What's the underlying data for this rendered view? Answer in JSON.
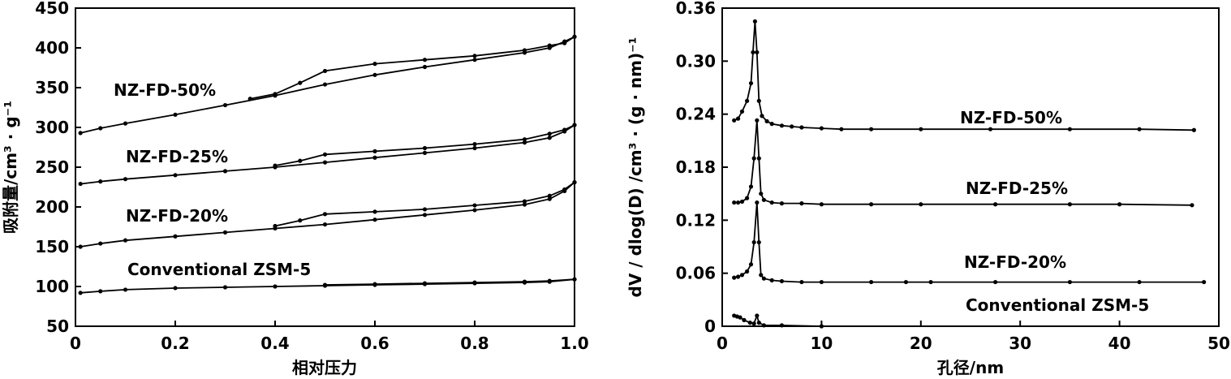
{
  "chart_data": [
    {
      "type": "line",
      "ylabel": "吸附量/cm³ · g⁻¹",
      "xlabel": "相对压力",
      "xlim": [
        0,
        1.0
      ],
      "ylim": [
        50,
        450
      ],
      "x_ticks": [
        "0",
        "0.2",
        "0.4",
        "0.6",
        "0.8",
        "1.0"
      ],
      "y_ticks": [
        "50",
        "100",
        "150",
        "200",
        "250",
        "300",
        "350",
        "400",
        "450"
      ],
      "series": [
        {
          "name": "NZ-FD-50%",
          "adsorption": [
            [
              0.01,
              293
            ],
            [
              0.05,
              299
            ],
            [
              0.1,
              305
            ],
            [
              0.2,
              316
            ],
            [
              0.3,
              328
            ],
            [
              0.4,
              340
            ],
            [
              0.5,
              354
            ],
            [
              0.6,
              366
            ],
            [
              0.7,
              376
            ],
            [
              0.8,
              385
            ],
            [
              0.9,
              394
            ],
            [
              0.95,
              400
            ],
            [
              0.98,
              408
            ],
            [
              1.0,
              414
            ]
          ],
          "desorption": [
            [
              1.0,
              414
            ],
            [
              0.98,
              406
            ],
            [
              0.95,
              403
            ],
            [
              0.9,
              397
            ],
            [
              0.8,
              390
            ],
            [
              0.7,
              385
            ],
            [
              0.6,
              380
            ],
            [
              0.5,
              371
            ],
            [
              0.45,
              356
            ],
            [
              0.4,
              342
            ],
            [
              0.35,
              336
            ]
          ]
        },
        {
          "name": "NZ-FD-25%",
          "adsorption": [
            [
              0.01,
              229
            ],
            [
              0.05,
              232
            ],
            [
              0.1,
              235
            ],
            [
              0.2,
              240
            ],
            [
              0.3,
              245
            ],
            [
              0.4,
              250
            ],
            [
              0.5,
              256
            ],
            [
              0.6,
              262
            ],
            [
              0.7,
              268
            ],
            [
              0.8,
              274
            ],
            [
              0.9,
              281
            ],
            [
              0.95,
              287
            ],
            [
              0.98,
              295
            ],
            [
              1.0,
              303
            ]
          ],
          "desorption": [
            [
              1.0,
              303
            ],
            [
              0.98,
              297
            ],
            [
              0.95,
              292
            ],
            [
              0.9,
              285
            ],
            [
              0.8,
              279
            ],
            [
              0.7,
              274
            ],
            [
              0.6,
              270
            ],
            [
              0.5,
              266
            ],
            [
              0.45,
              258
            ],
            [
              0.4,
              252
            ]
          ]
        },
        {
          "name": "NZ-FD-20%",
          "adsorption": [
            [
              0.01,
              150
            ],
            [
              0.05,
              154
            ],
            [
              0.1,
              158
            ],
            [
              0.2,
              163
            ],
            [
              0.3,
              168
            ],
            [
              0.4,
              173
            ],
            [
              0.5,
              178
            ],
            [
              0.6,
              184
            ],
            [
              0.7,
              190
            ],
            [
              0.8,
              196
            ],
            [
              0.9,
              203
            ],
            [
              0.95,
              210
            ],
            [
              0.98,
              220
            ],
            [
              1.0,
              231
            ]
          ],
          "desorption": [
            [
              1.0,
              231
            ],
            [
              0.98,
              222
            ],
            [
              0.95,
              214
            ],
            [
              0.9,
              207
            ],
            [
              0.8,
              202
            ],
            [
              0.7,
              197
            ],
            [
              0.6,
              194
            ],
            [
              0.5,
              191
            ],
            [
              0.45,
              183
            ],
            [
              0.4,
              176
            ]
          ]
        },
        {
          "name": "Conventional ZSM-5",
          "adsorption": [
            [
              0.01,
              92
            ],
            [
              0.05,
              94
            ],
            [
              0.1,
              96
            ],
            [
              0.2,
              98
            ],
            [
              0.3,
              99
            ],
            [
              0.4,
              100
            ],
            [
              0.5,
              101
            ],
            [
              0.6,
              102
            ],
            [
              0.7,
              103
            ],
            [
              0.8,
              104
            ],
            [
              0.9,
              105
            ],
            [
              0.95,
              106
            ],
            [
              1.0,
              109
            ]
          ],
          "desorption": [
            [
              1.0,
              109
            ],
            [
              0.95,
              107
            ],
            [
              0.9,
              106
            ],
            [
              0.8,
              105
            ],
            [
              0.7,
              104
            ],
            [
              0.6,
              103
            ],
            [
              0.5,
              102
            ]
          ]
        }
      ]
    },
    {
      "type": "line",
      "ylabel": "dV / dlog(D) /cm³ · (g · nm)⁻¹",
      "xlabel": "孔径/nm",
      "xlim": [
        0,
        50
      ],
      "ylim": [
        0,
        0.36
      ],
      "x_ticks": [
        "0",
        "10",
        "20",
        "30",
        "40",
        "50"
      ],
      "y_ticks": [
        "0",
        "0.06",
        "0.12",
        "0.18",
        "0.24",
        "0.30",
        "0.36"
      ],
      "series": [
        {
          "name": "NZ-FD-50%",
          "points": [
            [
              1.2,
              0.233
            ],
            [
              1.6,
              0.235
            ],
            [
              2.0,
              0.243
            ],
            [
              2.5,
              0.255
            ],
            [
              2.9,
              0.275
            ],
            [
              3.1,
              0.31
            ],
            [
              3.3,
              0.345
            ],
            [
              3.5,
              0.31
            ],
            [
              3.7,
              0.255
            ],
            [
              4.0,
              0.238
            ],
            [
              4.5,
              0.232
            ],
            [
              5,
              0.229
            ],
            [
              6,
              0.227
            ],
            [
              7,
              0.226
            ],
            [
              8,
              0.225
            ],
            [
              10,
              0.224
            ],
            [
              12,
              0.223
            ],
            [
              15,
              0.223
            ],
            [
              20,
              0.223
            ],
            [
              27,
              0.223
            ],
            [
              35,
              0.223
            ],
            [
              42,
              0.223
            ],
            [
              47.5,
              0.222
            ]
          ]
        },
        {
          "name": "NZ-FD-25%",
          "points": [
            [
              1.2,
              0.14
            ],
            [
              1.6,
              0.14
            ],
            [
              2.0,
              0.141
            ],
            [
              2.5,
              0.145
            ],
            [
              2.9,
              0.158
            ],
            [
              3.2,
              0.19
            ],
            [
              3.5,
              0.233
            ],
            [
              3.7,
              0.19
            ],
            [
              3.9,
              0.15
            ],
            [
              4.2,
              0.143
            ],
            [
              5,
              0.14
            ],
            [
              6,
              0.139
            ],
            [
              8,
              0.139
            ],
            [
              10,
              0.138
            ],
            [
              15,
              0.138
            ],
            [
              20,
              0.138
            ],
            [
              27.5,
              0.138
            ],
            [
              35,
              0.138
            ],
            [
              40,
              0.138
            ],
            [
              47.3,
              0.137
            ]
          ]
        },
        {
          "name": "NZ-FD-20%",
          "points": [
            [
              1.2,
              0.055
            ],
            [
              1.6,
              0.056
            ],
            [
              2.0,
              0.058
            ],
            [
              2.5,
              0.062
            ],
            [
              2.9,
              0.07
            ],
            [
              3.2,
              0.095
            ],
            [
              3.5,
              0.14
            ],
            [
              3.7,
              0.095
            ],
            [
              3.9,
              0.058
            ],
            [
              4.2,
              0.054
            ],
            [
              5,
              0.052
            ],
            [
              6,
              0.051
            ],
            [
              8,
              0.05
            ],
            [
              10,
              0.05
            ],
            [
              15,
              0.05
            ],
            [
              18.5,
              0.05
            ],
            [
              21,
              0.05
            ],
            [
              27.5,
              0.05
            ],
            [
              35,
              0.05
            ],
            [
              42,
              0.05
            ],
            [
              48.5,
              0.05
            ]
          ]
        },
        {
          "name": "Conventional ZSM-5",
          "points": [
            [
              1.2,
              0.012
            ],
            [
              1.5,
              0.011
            ],
            [
              1.8,
              0.01
            ],
            [
              2.2,
              0.007
            ],
            [
              2.8,
              0.004
            ],
            [
              3.2,
              0.003
            ],
            [
              3.5,
              0.012
            ],
            [
              3.7,
              0.004
            ],
            [
              4.2,
              0.001
            ],
            [
              6,
              0.001
            ],
            [
              10,
              0.0
            ]
          ]
        }
      ]
    }
  ]
}
